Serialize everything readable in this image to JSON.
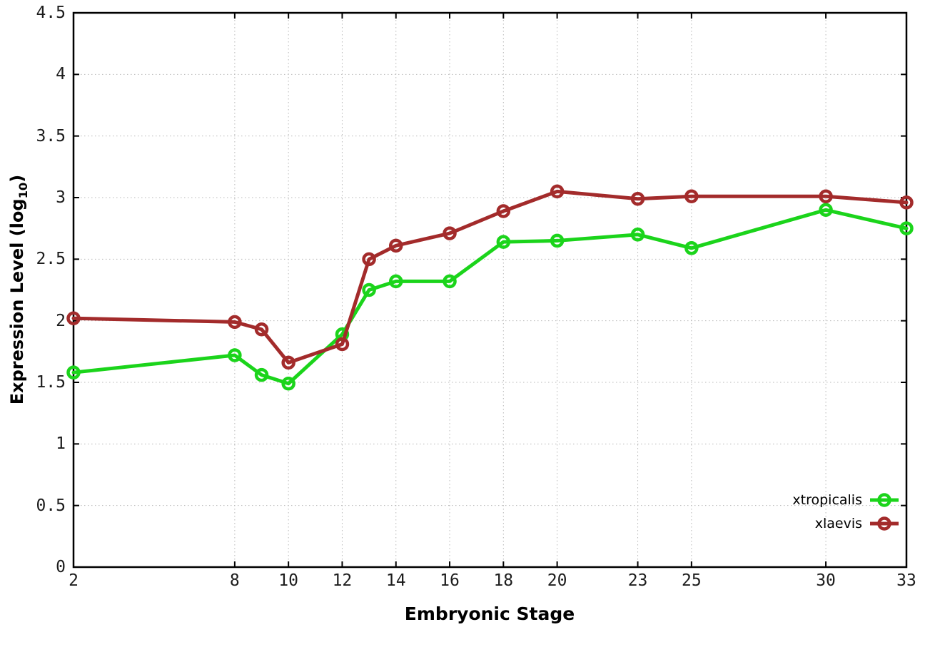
{
  "chart_data": {
    "type": "line",
    "xlabel": "Embryonic Stage",
    "ylabel": "Expression Level (log10)",
    "ylabel_parts": {
      "main": "Expression Level (log",
      "sub": "10",
      "end": ")"
    },
    "x": [
      2,
      8,
      9,
      10,
      12,
      13,
      14,
      16,
      18,
      20,
      23,
      25,
      30,
      33
    ],
    "series": [
      {
        "name": "xtropicalis",
        "color": "#1bd41b",
        "values": [
          1.58,
          1.72,
          1.56,
          1.49,
          1.89,
          2.25,
          2.32,
          2.32,
          2.64,
          2.65,
          2.7,
          2.59,
          2.9,
          2.75
        ]
      },
      {
        "name": "xlaevis",
        "color": "#a32b2b",
        "values": [
          2.02,
          1.99,
          1.93,
          1.66,
          1.81,
          2.5,
          2.61,
          2.71,
          2.89,
          3.05,
          2.99,
          3.01,
          3.01,
          2.96
        ]
      }
    ],
    "x_ticks": [
      2,
      8,
      10,
      12,
      14,
      16,
      18,
      20,
      23,
      25,
      30,
      33
    ],
    "x_tick_labels": [
      "2",
      "8",
      "10",
      "12",
      "14",
      "16",
      "18",
      "20",
      "23",
      "25",
      "30",
      "33"
    ],
    "y_ticks": [
      0,
      0.5,
      1,
      1.5,
      2,
      2.5,
      3,
      3.5,
      4,
      4.5
    ],
    "y_tick_labels": [
      "0",
      "0.5",
      "1",
      "1.5",
      "2",
      "2.5",
      "3",
      "3.5",
      "4",
      "4.5"
    ],
    "xlim": [
      2,
      33
    ],
    "ylim": [
      0,
      4.5
    ],
    "grid": true,
    "legend_position": "bottom-right",
    "marker": "open-circle"
  },
  "colors": {
    "background": "#ffffff",
    "axis": "#000000",
    "grid": "#b8b8b8",
    "tick_text": "#1c1c1c",
    "xtropicalis": "#1bd41b",
    "xlaevis": "#a32b2b"
  }
}
